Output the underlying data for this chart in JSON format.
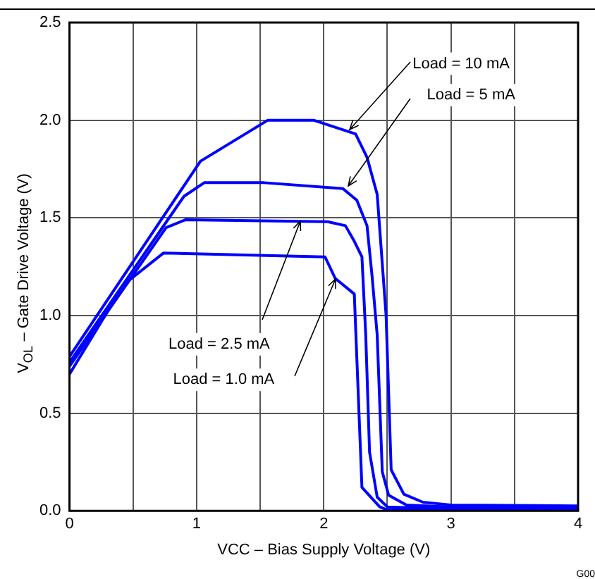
{
  "chart_data": {
    "type": "line",
    "xlabel": "VCC – Bias Supply Voltage (V)",
    "ylabel": "V$_{OL}$ – Gate Drive Voltage (V)",
    "xlim": [
      0,
      4
    ],
    "ylim": [
      0,
      2.5
    ],
    "xticks": [
      0,
      {
        "value": 0.5,
        "label": null
      },
      1,
      {
        "value": 1.5,
        "label": null
      },
      2,
      {
        "value": 2.5,
        "label": null
      },
      3,
      {
        "value": 3.5,
        "label": null
      },
      4
    ],
    "yticks": [
      {
        "value": 0,
        "label": "0.0"
      },
      {
        "value": 0.5,
        "label": "0.5"
      },
      {
        "value": 1,
        "label": "1.0"
      },
      {
        "value": 1.5,
        "label": "1.5"
      },
      {
        "value": 2,
        "label": "2.0"
      },
      {
        "value": 2.5,
        "label": "2.5"
      }
    ],
    "grid": true,
    "marker": "none",
    "line_style": "solid",
    "series": [
      {
        "color": "#0000ff",
        "x": [
          0,
          1.03,
          1.56,
          1.92,
          2.25,
          2.34,
          2.42,
          2.49,
          2.53,
          2.63,
          2.78,
          3,
          4
        ],
        "values": [
          0.79,
          1.79,
          2.0,
          2.0,
          1.93,
          1.81,
          1.62,
          1.0,
          0.21,
          0.085,
          0.044,
          0.03,
          0.025
        ]
      },
      {
        "color": "#0000ff",
        "x": [
          0,
          0.9,
          1.06,
          1.53,
          2.15,
          2.26,
          2.34,
          2.38,
          2.42,
          2.46,
          2.51,
          2.65,
          3,
          4
        ],
        "values": [
          0.76,
          1.61,
          1.68,
          1.68,
          1.65,
          1.59,
          1.46,
          1.2,
          0.9,
          0.2,
          0.08,
          0.03,
          0.02,
          0.015
        ]
      },
      {
        "color": "#0000ff",
        "x": [
          0,
          0.76,
          0.91,
          2.03,
          2.17,
          2.24,
          2.3,
          2.33,
          2.36,
          2.42,
          2.5,
          3,
          4
        ],
        "values": [
          0.74,
          1.45,
          1.49,
          1.48,
          1.46,
          1.38,
          1.3,
          0.9,
          0.3,
          0.07,
          0.02,
          0.01,
          0.01
        ]
      },
      {
        "color": "#0000ff",
        "x": [
          0,
          0.43,
          0.74,
          2.01,
          2.09,
          2.24,
          2.3,
          2.44,
          2.5,
          4
        ],
        "values": [
          0.7,
          1.16,
          1.32,
          1.3,
          1.19,
          1.11,
          0.12,
          0.02,
          0.005,
          0.005
        ]
      }
    ],
    "annotations": [
      {
        "text": "Load = 10 mA",
        "x": 2.2,
        "y": 1.95
      },
      {
        "text": "Load = 5 mA",
        "x": 2.19,
        "y": 1.66
      },
      {
        "text": "Load = 2.5 mA",
        "x": 1.81,
        "y": 1.48
      },
      {
        "text": "Load = 1.0 mA",
        "x": 2.09,
        "y": 1.19
      },
      "G00"
    ]
  }
}
